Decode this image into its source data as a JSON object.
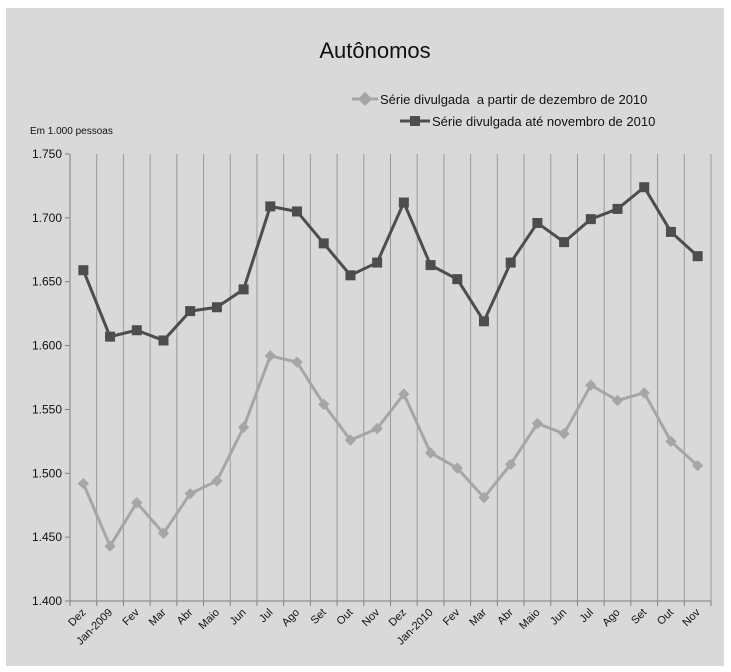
{
  "chart_data": {
    "type": "line",
    "title": "Autônomos",
    "unit_label": "Em 1.000 pessoas",
    "ylim": [
      1400,
      1750
    ],
    "yticks": [
      1400,
      1450,
      1500,
      1550,
      1600,
      1650,
      1700,
      1750
    ],
    "ytick_labels": [
      "1.400",
      "1.450",
      "1.500",
      "1.550",
      "1.600",
      "1.650",
      "1.700",
      "1.750"
    ],
    "grid": "vertical",
    "legend_position": "top-right",
    "categories": [
      "Dez",
      "Jan-2009",
      "Fev",
      "Mar",
      "Abr",
      "Maio",
      "Jun",
      "Jul",
      "Ago",
      "Set",
      "Out",
      "Nov",
      "Dez",
      "Jan-2010",
      "Fev",
      "Mar",
      "Abr",
      "Maio",
      "Jun",
      "Jul",
      "Ago",
      "Set",
      "Out",
      "Nov"
    ],
    "series": [
      {
        "name": "Série divulgada  a partir de dezembro de 2010",
        "color": "#a6a6a6",
        "marker": "diamond",
        "values": [
          1492,
          1443,
          1477,
          1453,
          1484,
          1494,
          1536,
          1592,
          1587,
          1554,
          1526,
          1535,
          1562,
          1516,
          1504,
          1481,
          1507,
          1539,
          1531,
          1569,
          1557,
          1563,
          1525,
          1506
        ]
      },
      {
        "name": "Série divulgada até novembro de 2010",
        "color": "#4d4d4d",
        "marker": "square",
        "values": [
          1659,
          1607,
          1612,
          1604,
          1627,
          1630,
          1644,
          1709,
          1705,
          1680,
          1655,
          1665,
          1712,
          1663,
          1652,
          1619,
          1665,
          1696,
          1681,
          1699,
          1707,
          1724,
          1689,
          1670
        ]
      }
    ]
  }
}
